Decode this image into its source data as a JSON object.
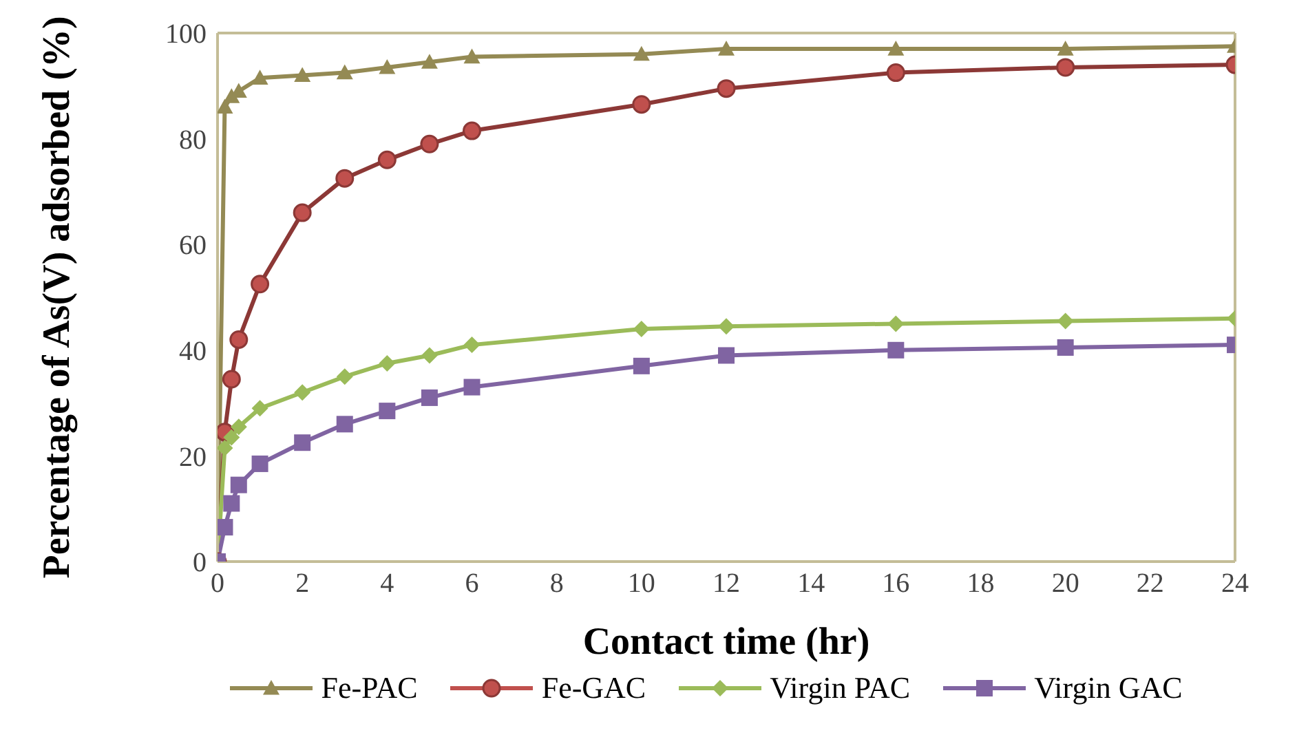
{
  "chart_data": {
    "type": "line",
    "xlabel": "Contact time (hr)",
    "ylabel": "Percentage of As(V) adsorbed (%)",
    "x": [
      0,
      0.17,
      0.33,
      0.5,
      1,
      2,
      3,
      4,
      5,
      6,
      10,
      12,
      16,
      20,
      24
    ],
    "xlim": [
      0,
      24
    ],
    "xticks": [
      0,
      2,
      4,
      6,
      8,
      10,
      12,
      14,
      16,
      18,
      20,
      22,
      24
    ],
    "ylim": [
      0,
      100
    ],
    "yticks": [
      0,
      20,
      40,
      60,
      80,
      100
    ],
    "grid": false,
    "legend": "bottom",
    "series": [
      {
        "name": "Fe-PAC",
        "color": "#948a54",
        "marker": "triangle",
        "values": [
          0,
          86,
          88,
          89,
          91.5,
          92,
          92.5,
          93.5,
          94.5,
          95.5,
          96,
          97,
          97,
          97,
          97.5
        ]
      },
      {
        "name": "Fe-GAC",
        "color": "#c0504d",
        "marker": "circle",
        "values": [
          0,
          24.5,
          34.5,
          42,
          52.5,
          66,
          72.5,
          76,
          79,
          81.5,
          86.5,
          89.5,
          92.5,
          93.5,
          94
        ]
      },
      {
        "name": "Virgin PAC",
        "color": "#9bbb59",
        "marker": "diamond",
        "values": [
          0,
          21.5,
          23.5,
          25.5,
          29,
          32,
          35,
          37.5,
          39,
          41,
          44,
          44.5,
          45,
          45.5,
          46
        ]
      },
      {
        "name": "Virgin GAC",
        "color": "#8064a2",
        "marker": "square",
        "values": [
          0,
          6.5,
          11,
          14.5,
          18.5,
          22.5,
          26,
          28.5,
          31,
          33,
          37,
          39,
          40,
          40.5,
          41
        ]
      }
    ]
  }
}
